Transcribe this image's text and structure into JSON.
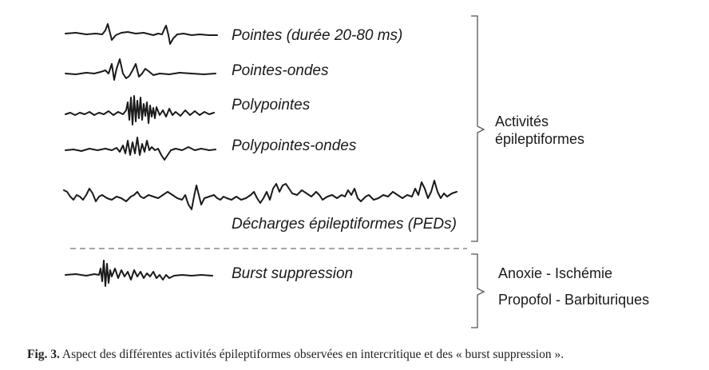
{
  "waveforms": [
    {
      "id": "pointes",
      "label": "Pointes (durée 20-80 ms)"
    },
    {
      "id": "pointes-ondes",
      "label": "Pointes-ondes"
    },
    {
      "id": "polypointes",
      "label": "Polypointes"
    },
    {
      "id": "polypointes-ondes",
      "label": "Polypointes-ondes"
    },
    {
      "id": "peds",
      "label": "Décharges épileptiformes (PEDs)"
    },
    {
      "id": "burst",
      "label": "Burst suppression"
    }
  ],
  "groups": {
    "epileptiform": {
      "line1": "Activités",
      "line2": "épileptiformes"
    },
    "burst": {
      "line1": "Anoxie - Ischémie",
      "line2": "Propofol - Barbituriques"
    }
  },
  "caption": {
    "label": "Fig. 3.",
    "text": " Aspect des différentes activités épileptiformes observées en intercritique et des « burst suppression »."
  }
}
